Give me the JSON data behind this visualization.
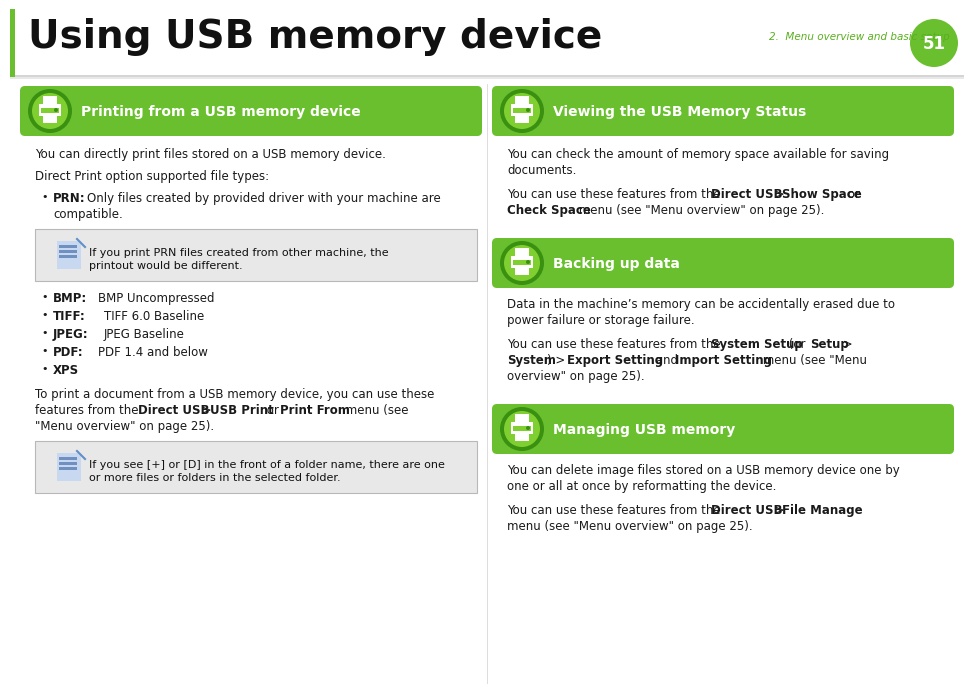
{
  "title": "Using USB memory device",
  "page_num": "51",
  "chapter": "2.  Menu overview and basic setup",
  "bg_color": "#ffffff",
  "green": "#6abf2e",
  "green_light": "#a8d96c",
  "green_dark": "#4a9e1a",
  "white": "#ffffff",
  "black": "#1a1a1a",
  "note_bg": "#e8e8e8",
  "note_border": "#cccccc",
  "chapter_green": "#5aaf20",
  "fig_w": 9.54,
  "fig_h": 6.75,
  "dpi": 100
}
